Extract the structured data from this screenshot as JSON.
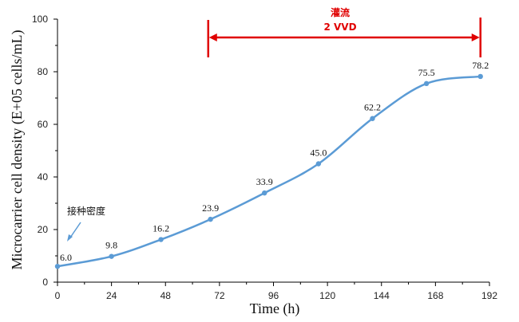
{
  "chart_data": {
    "type": "line",
    "xlabel": "Time (h)",
    "ylabel": "Microcarrier cell density (E+05 cells/mL)",
    "xlim": [
      0,
      192
    ],
    "ylim": [
      0,
      100
    ],
    "x_ticks": [
      0,
      24,
      48,
      72,
      96,
      120,
      144,
      168,
      192
    ],
    "y_ticks": [
      0,
      20,
      40,
      60,
      80,
      100
    ],
    "grid": false,
    "series": [
      {
        "x": [
          0,
          24,
          46,
          68,
          92,
          116,
          140,
          164,
          188
        ],
        "y": [
          6.0,
          9.8,
          16.2,
          23.9,
          33.9,
          45.0,
          62.2,
          75.5,
          78.2
        ],
        "labels": [
          "6.0",
          "9.8",
          "16.2",
          "23.9",
          "33.9",
          "45.0",
          "62.2",
          "75.5",
          "78.2"
        ]
      }
    ],
    "annotations": {
      "seeding_label": "接种密度",
      "perfusion_label": "灌流",
      "perfusion_rate": "2 VVD",
      "perfusion_start_x": 67,
      "perfusion_end_x": 188
    },
    "colors": {
      "line": "#5b9bd5",
      "marker": "#5b9bd5",
      "annotation": "#e00000",
      "axis": "#000000"
    }
  }
}
